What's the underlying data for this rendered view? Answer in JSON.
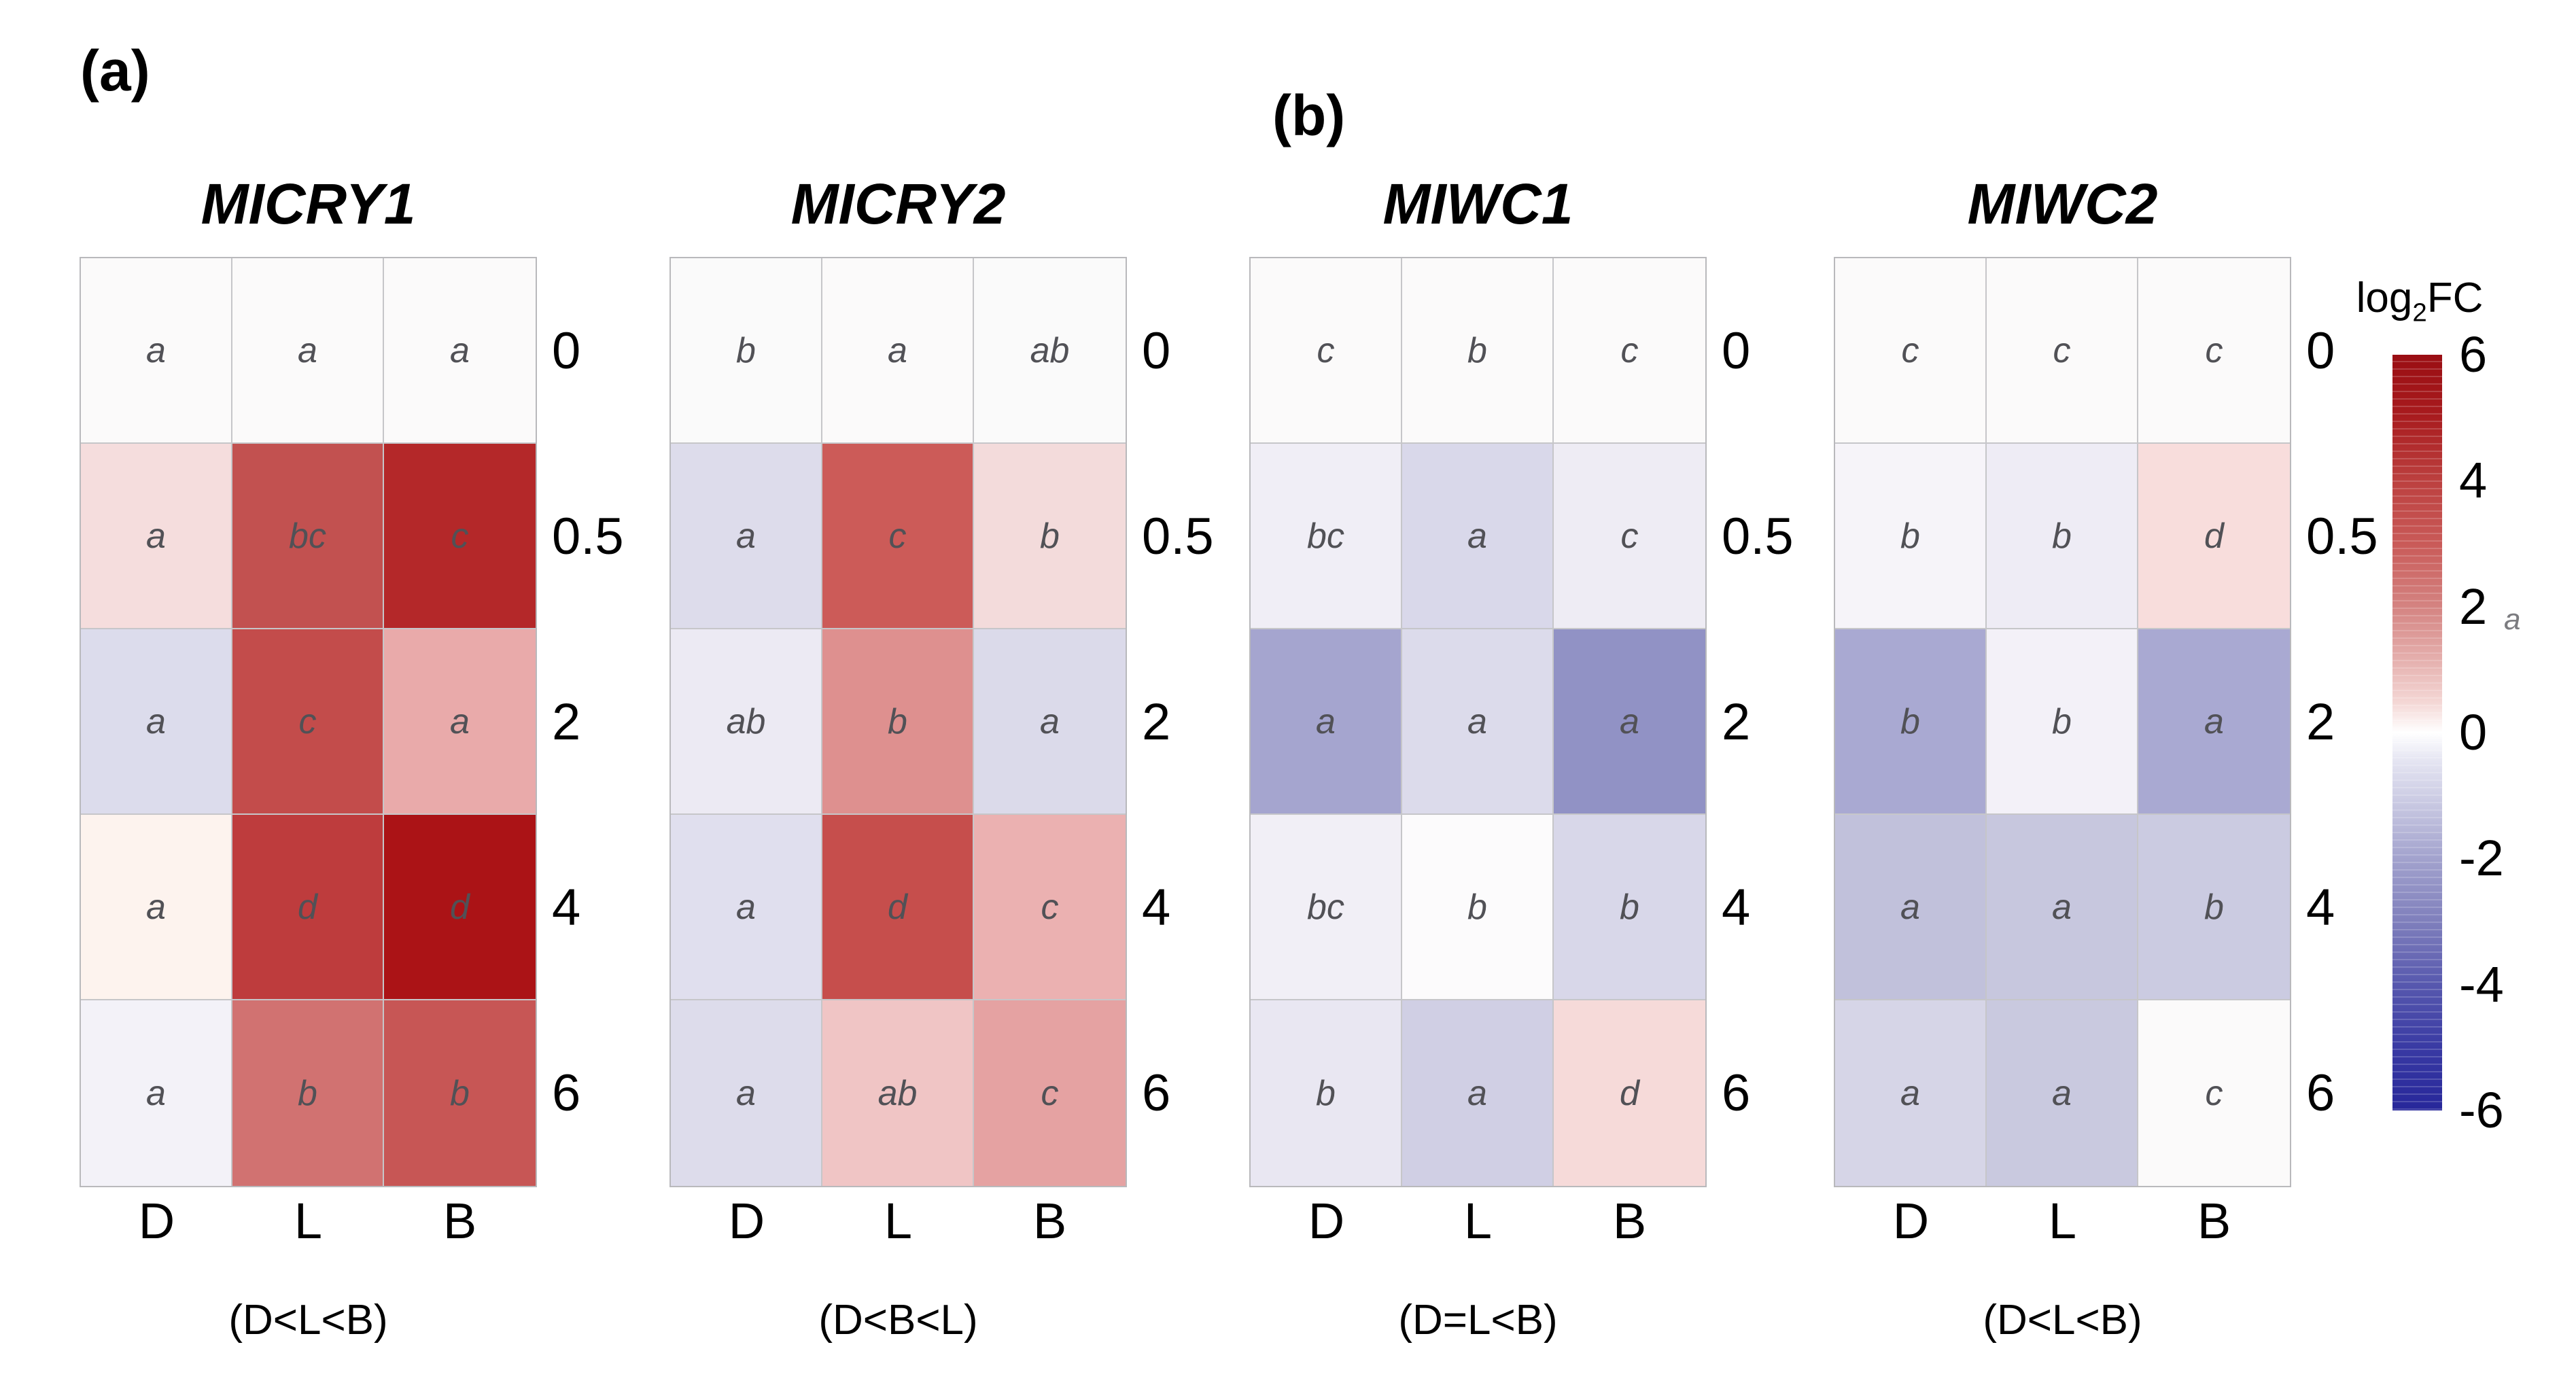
{
  "panels": [
    {
      "label": "(a)",
      "heatmaps": [
        {
          "title": "MICRY1",
          "caption": "(D<L<B)",
          "columns": [
            "D",
            "L",
            "B"
          ],
          "rows": [
            "0",
            "0.5",
            "2",
            "4",
            "6"
          ],
          "cells": [
            [
              {
                "letter": "a",
                "color": "#fbfafa"
              },
              {
                "letter": "a",
                "color": "#fbfafa"
              },
              {
                "letter": "a",
                "color": "#fbfafa"
              }
            ],
            [
              {
                "letter": "a",
                "color": "#f5dddd"
              },
              {
                "letter": "bc",
                "color": "#c25150"
              },
              {
                "letter": "c",
                "color": "#b42829"
              }
            ],
            [
              {
                "letter": "a",
                "color": "#dcdcec"
              },
              {
                "letter": "c",
                "color": "#c34c4b"
              },
              {
                "letter": "a",
                "color": "#e9aaaa"
              }
            ],
            [
              {
                "letter": "a",
                "color": "#fdf3ee"
              },
              {
                "letter": "d",
                "color": "#be3c3d"
              },
              {
                "letter": "d",
                "color": "#ab1316"
              }
            ],
            [
              {
                "letter": "a",
                "color": "#f3f2f8"
              },
              {
                "letter": "b",
                "color": "#d17271"
              },
              {
                "letter": "b",
                "color": "#c75655"
              }
            ]
          ]
        },
        {
          "title": "MICRY2",
          "caption": "(D<B<L)",
          "columns": [
            "D",
            "L",
            "B"
          ],
          "rows": [
            "0",
            "0.5",
            "2",
            "4",
            "6"
          ],
          "cells": [
            [
              {
                "letter": "b",
                "color": "#fafafa"
              },
              {
                "letter": "a",
                "color": "#fbfafa"
              },
              {
                "letter": "ab",
                "color": "#fafafa"
              }
            ],
            [
              {
                "letter": "a",
                "color": "#dddceb"
              },
              {
                "letter": "c",
                "color": "#cc5b58"
              },
              {
                "letter": "b",
                "color": "#f3dbdb"
              }
            ],
            [
              {
                "letter": "ab",
                "color": "#eceaf3"
              },
              {
                "letter": "b",
                "color": "#de908f"
              },
              {
                "letter": "a",
                "color": "#dbdaea"
              }
            ],
            [
              {
                "letter": "a",
                "color": "#e0dfee"
              },
              {
                "letter": "d",
                "color": "#c64e4c"
              },
              {
                "letter": "c",
                "color": "#ebb1b1"
              }
            ],
            [
              {
                "letter": "a",
                "color": "#dddceb"
              },
              {
                "letter": "ab",
                "color": "#f0c5c5"
              },
              {
                "letter": "c",
                "color": "#e5a2a2"
              }
            ]
          ]
        }
      ]
    },
    {
      "label": "(b)",
      "heatmaps": [
        {
          "title": "MIWC1",
          "caption": "(D=L<B)",
          "columns": [
            "D",
            "L",
            "B"
          ],
          "rows": [
            "0",
            "0.5",
            "2",
            "4",
            "6"
          ],
          "cells": [
            [
              {
                "letter": "c",
                "color": "#fbfafa"
              },
              {
                "letter": "b",
                "color": "#fbfafa"
              },
              {
                "letter": "c",
                "color": "#fbfafa"
              }
            ],
            [
              {
                "letter": "bc",
                "color": "#f0eef6"
              },
              {
                "letter": "a",
                "color": "#d9d8ea"
              },
              {
                "letter": "c",
                "color": "#eeecf4"
              }
            ],
            [
              {
                "letter": "a",
                "color": "#a5a5cf"
              },
              {
                "letter": "a",
                "color": "#dcdbeb"
              },
              {
                "letter": "a",
                "color": "#9192c5"
              }
            ],
            [
              {
                "letter": "bc",
                "color": "#f1eff6"
              },
              {
                "letter": "b",
                "color": "#fcfbfc"
              },
              {
                "letter": "b",
                "color": "#d8d7e9"
              }
            ],
            [
              {
                "letter": "b",
                "color": "#e9e7f2"
              },
              {
                "letter": "a",
                "color": "#d0cfe4"
              },
              {
                "letter": "d",
                "color": "#f6dad9"
              }
            ]
          ]
        },
        {
          "title": "MIWC2",
          "caption": "(D<L<B)",
          "columns": [
            "D",
            "L",
            "B"
          ],
          "rows": [
            "0",
            "0.5",
            "2",
            "4",
            "6"
          ],
          "cells": [
            [
              {
                "letter": "c",
                "color": "#fbfafa"
              },
              {
                "letter": "c",
                "color": "#fbfafa"
              },
              {
                "letter": "c",
                "color": "#fbfafa"
              }
            ],
            [
              {
                "letter": "b",
                "color": "#f6f4f9"
              },
              {
                "letter": "b",
                "color": "#eeecf5"
              },
              {
                "letter": "d",
                "color": "#f8dddc"
              }
            ],
            [
              {
                "letter": "b",
                "color": "#a9a9d2"
              },
              {
                "letter": "b",
                "color": "#f3f1f8"
              },
              {
                "letter": "a",
                "color": "#a9a9d2"
              }
            ],
            [
              {
                "letter": "a",
                "color": "#c1c1db"
              },
              {
                "letter": "a",
                "color": "#c7c7de"
              },
              {
                "letter": "b",
                "color": "#cbcbe1"
              }
            ],
            [
              {
                "letter": "a",
                "color": "#d6d5e7"
              },
              {
                "letter": "a",
                "color": "#c9c9df"
              },
              {
                "letter": "c",
                "color": "#fbfafa"
              }
            ]
          ]
        }
      ]
    }
  ],
  "colorbar": {
    "title_prefix": "log",
    "title_sub": "2",
    "title_suffix": "FC",
    "ticks": [
      "6",
      "4",
      "2",
      "0",
      "-2",
      "-4",
      "-6"
    ],
    "stray_label": "a",
    "gradient_top": "#9a0e13",
    "gradient_mid": "#ffffff",
    "gradient_bottom": "#27279a"
  },
  "chart_data": {
    "type": "heatmap",
    "value_label": "log2FC",
    "value_range": [
      -6,
      6
    ],
    "colormap": "diverging red-white-blue (red = positive, blue = negative)",
    "legend_position": "right",
    "x_categories": [
      "D",
      "L",
      "B"
    ],
    "y_categories": [
      "0",
      "0.5",
      "2",
      "4",
      "6"
    ],
    "heatmaps": [
      {
        "title": "MICRY1",
        "group_order": "(D<L<B)",
        "significance_letters": [
          [
            "a",
            "a",
            "a"
          ],
          [
            "a",
            "bc",
            "c"
          ],
          [
            "a",
            "c",
            "a"
          ],
          [
            "a",
            "d",
            "d"
          ],
          [
            "a",
            "b",
            "b"
          ]
        ],
        "estimated_log2FC": [
          [
            0,
            0,
            0
          ],
          [
            0.4,
            3.4,
            5.0
          ],
          [
            -0.6,
            3.5,
            1.6
          ],
          [
            0.1,
            4.0,
            5.6
          ],
          [
            -0.2,
            2.5,
            3.2
          ]
        ]
      },
      {
        "title": "MICRY2",
        "group_order": "(D<B<L)",
        "significance_letters": [
          [
            "b",
            "a",
            "ab"
          ],
          [
            "a",
            "c",
            "b"
          ],
          [
            "ab",
            "b",
            "a"
          ],
          [
            "a",
            "d",
            "c"
          ],
          [
            "a",
            "ab",
            "c"
          ]
        ],
        "estimated_log2FC": [
          [
            0,
            0,
            0
          ],
          [
            -0.6,
            3.0,
            0.5
          ],
          [
            -0.3,
            2.0,
            -0.6
          ],
          [
            -0.5,
            3.4,
            1.5
          ],
          [
            -0.6,
            1.0,
            1.8
          ]
        ]
      },
      {
        "title": "MIWC1",
        "group_order": "(D=L<B)",
        "significance_letters": [
          [
            "c",
            "b",
            "c"
          ],
          [
            "bc",
            "a",
            "c"
          ],
          [
            "a",
            "a",
            "a"
          ],
          [
            "bc",
            "b",
            "b"
          ],
          [
            "b",
            "a",
            "d"
          ]
        ],
        "estimated_log2FC": [
          [
            0,
            0,
            0
          ],
          [
            -0.3,
            -0.7,
            -0.3
          ],
          [
            -2.0,
            -0.6,
            -2.4
          ],
          [
            -0.3,
            0,
            -0.7
          ],
          [
            -0.4,
            -0.9,
            0.5
          ]
        ]
      },
      {
        "title": "MIWC2",
        "group_order": "(D<L<B)",
        "significance_letters": [
          [
            "c",
            "c",
            "c"
          ],
          [
            "b",
            "b",
            "d"
          ],
          [
            "b",
            "b",
            "a"
          ],
          [
            "a",
            "a",
            "b"
          ],
          [
            "a",
            "a",
            "c"
          ]
        ],
        "estimated_log2FC": [
          [
            0,
            0,
            0
          ],
          [
            -0.2,
            -0.3,
            0.5
          ],
          [
            -1.9,
            -0.2,
            -1.9
          ],
          [
            -1.3,
            -1.1,
            -1.0
          ],
          [
            -0.9,
            -1.1,
            0
          ]
        ]
      }
    ]
  }
}
